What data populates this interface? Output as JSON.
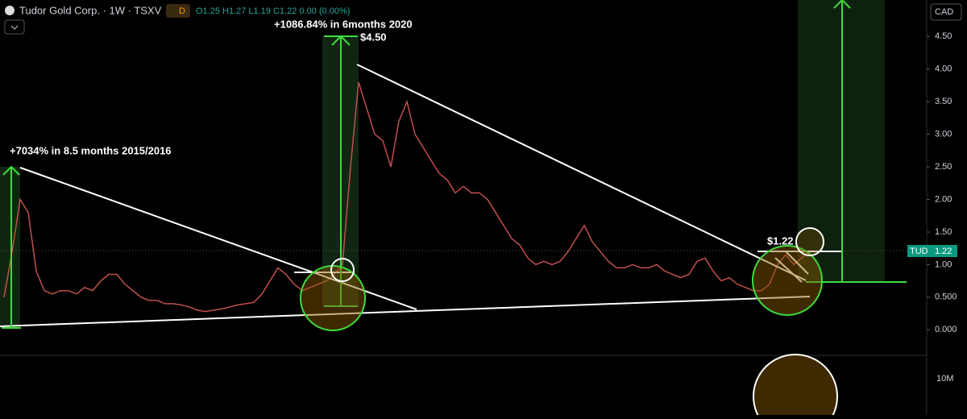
{
  "header": {
    "symbol": "Tudor Gold Corp. · 1W · TSXV",
    "badge": "D",
    "ohlc": "O1.25 H1.27 L1.19 C1.22 0.00 (0.00%)"
  },
  "chart_data": {
    "type": "line",
    "color": "#c0504d",
    "annotations": [
      "+7034% in 8.5 months 2015/2016",
      "+1086.84% in 6months 2020",
      "$4.50",
      "$1.22"
    ],
    "ylim": [
      -0.38,
      5.06
    ],
    "yticks": [
      {
        "value": 0,
        "label": "0.000"
      },
      {
        "value": 0.5,
        "label": "0.500"
      },
      {
        "value": 1,
        "label": "1.00"
      },
      {
        "value": 1.5,
        "label": "1.50"
      },
      {
        "value": 2,
        "label": "2.00"
      },
      {
        "value": 2.5,
        "label": "2.50"
      },
      {
        "value": 3,
        "label": "3.00"
      },
      {
        "value": 3.5,
        "label": "3.50"
      },
      {
        "value": 4,
        "label": "4.00"
      },
      {
        "value": 4.5,
        "label": "4.50"
      }
    ],
    "values": [
      0.5,
      1.2,
      2.0,
      1.8,
      0.9,
      0.6,
      0.55,
      0.6,
      0.6,
      0.55,
      0.65,
      0.6,
      0.75,
      0.85,
      0.85,
      0.7,
      0.6,
      0.5,
      0.45,
      0.45,
      0.4,
      0.4,
      0.38,
      0.35,
      0.3,
      0.28,
      0.3,
      0.32,
      0.35,
      0.38,
      0.4,
      0.42,
      0.55,
      0.75,
      0.95,
      0.85,
      0.7,
      0.6,
      0.65,
      0.7,
      0.75,
      0.85,
      1.0,
      2.5,
      3.8,
      3.4,
      3.0,
      2.9,
      2.5,
      3.2,
      3.5,
      3.0,
      2.8,
      2.6,
      2.4,
      2.3,
      2.1,
      2.2,
      2.1,
      2.1,
      2.0,
      1.8,
      1.6,
      1.4,
      1.3,
      1.1,
      1.0,
      1.05,
      1.0,
      1.05,
      1.2,
      1.4,
      1.6,
      1.35,
      1.2,
      1.05,
      0.95,
      0.95,
      1.0,
      0.95,
      0.95,
      1.0,
      0.9,
      0.85,
      0.8,
      0.85,
      1.05,
      1.1,
      0.9,
      0.75,
      0.8,
      0.7,
      0.65,
      0.6,
      0.6,
      0.7,
      1.0,
      1.15,
      1.0,
      1.1,
      1.22
    ]
  },
  "price_axis": {
    "currency": "CAD",
    "ticker": "TUD",
    "last": "1.22"
  },
  "volume_pane": {
    "tick": "10M"
  }
}
